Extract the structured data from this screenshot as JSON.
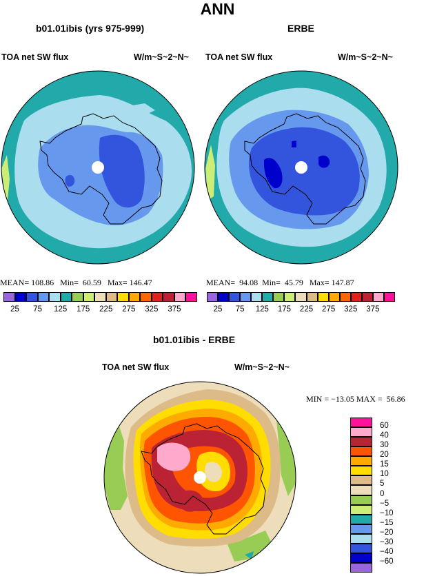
{
  "page_title": "ANN",
  "panels": [
    {
      "subtitle": "b01.01ibis (yrs 975-999)",
      "left_label": "TOA net SW flux",
      "right_label": "W/m~S~2~N~",
      "stats": {
        "mean_label": "MEAN=",
        "mean": "108.86",
        "min_label": "Min=",
        "min": "60.59",
        "max_label": "Max=",
        "max": "146.47"
      }
    },
    {
      "subtitle": "ERBE",
      "left_label": "TOA net SW flux",
      "right_label": "W/m~S~2~N~",
      "stats": {
        "mean_label": "MEAN=",
        "mean": "94.08",
        "min_label": "Min=",
        "min": "45.79",
        "max_label": "Max=",
        "max": "147.87"
      }
    },
    {
      "subtitle": "b01.01ibis - ERBE",
      "left_label": "TOA net SW flux",
      "right_label": "W/m~S~2~N~",
      "stats": {
        "min_label": "MIN =",
        "min": "−13.05",
        "max_label": "MAX =",
        "max": "56.86"
      }
    }
  ],
  "chart_data": [
    {
      "type": "heatmap",
      "projection": "south-polar-stereographic",
      "title": "b01.01ibis (yrs 975-999)",
      "variable": "TOA net SW flux",
      "units": "W/m~S~2~N~",
      "colorbar_ticks": [
        "25",
        "75",
        "125",
        "175",
        "225",
        "275",
        "325",
        "375"
      ],
      "colorbar_colors": [
        "#9966dd",
        "#0000cc",
        "#3355dd",
        "#6699ee",
        "#aaddee",
        "#22aaaa",
        "#99cc55",
        "#ccee77",
        "#eeddbb",
        "#ddbb88",
        "#ffdd00",
        "#ffaa00",
        "#ff6600",
        "#dd2222",
        "#bb2233",
        "#ffaacc",
        "#ff1199"
      ],
      "contour_levels": [
        25,
        50,
        75,
        100,
        125,
        150,
        175,
        200,
        225,
        250,
        275,
        300,
        325,
        350,
        375,
        400
      ],
      "regions_by_level": [
        "#eeddbb",
        "#ccee77",
        "#22aaaa",
        "#aaddee",
        "#6699ee",
        "#3355dd"
      ],
      "stats": {
        "mean": 108.86,
        "min": 60.59,
        "max": 146.47
      }
    },
    {
      "type": "heatmap",
      "projection": "south-polar-stereographic",
      "title": "ERBE",
      "variable": "TOA net SW flux",
      "units": "W/m~S~2~N~",
      "colorbar_ticks": [
        "25",
        "75",
        "125",
        "175",
        "225",
        "275",
        "325",
        "375"
      ],
      "colorbar_colors": [
        "#9966dd",
        "#0000cc",
        "#3355dd",
        "#6699ee",
        "#aaddee",
        "#22aaaa",
        "#99cc55",
        "#ccee77",
        "#eeddbb",
        "#ddbb88",
        "#ffdd00",
        "#ffaa00",
        "#ff6600",
        "#dd2222",
        "#bb2233",
        "#ffaacc",
        "#ff1199"
      ],
      "contour_levels": [
        25,
        50,
        75,
        100,
        125,
        150,
        175,
        200,
        225,
        250,
        275,
        300,
        325,
        350,
        375,
        400
      ],
      "regions_by_level": [
        "#ccee77",
        "#22aaaa",
        "#aaddee",
        "#6699ee",
        "#3355dd",
        "#0000cc"
      ],
      "stats": {
        "mean": 94.08,
        "min": 45.79,
        "max": 147.87
      }
    },
    {
      "type": "heatmap",
      "projection": "south-polar-stereographic",
      "title": "b01.01ibis - ERBE",
      "variable": "TOA net SW flux",
      "units": "W/m~S~2~N~",
      "colorbar_ticks": [
        "60",
        "40",
        "30",
        "20",
        "15",
        "10",
        "5",
        "0",
        "−5",
        "−10",
        "−15",
        "−20",
        "−30",
        "−40",
        "−60"
      ],
      "colorbar_colors": [
        "#ff1199",
        "#ffaacc",
        "#bb2233",
        "#ff5500",
        "#ffaa00",
        "#ffdd00",
        "#ddbb88",
        "#eeddbb",
        "#99cc55",
        "#ccee77",
        "#22aaaa",
        "#6699ee",
        "#aaddee",
        "#3355dd",
        "#0000cc",
        "#9966dd"
      ],
      "regions_by_level": [
        "#eeddbb",
        "#ddbb88",
        "#ffdd00",
        "#ffaa00",
        "#ff5500",
        "#bb2233",
        "#ffaacc"
      ],
      "stats": {
        "min": -13.05,
        "max": 56.86
      }
    }
  ]
}
